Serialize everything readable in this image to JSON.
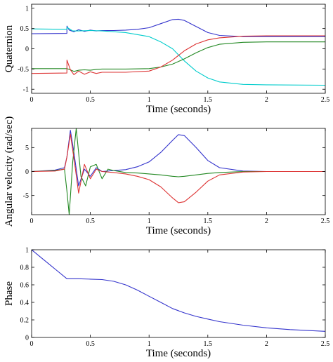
{
  "chart_data": [
    {
      "type": "line",
      "xlabel": "Time (seconds)",
      "ylabel": "Quaternion",
      "xlim": [
        0,
        2.5
      ],
      "ylim": [
        -1.1,
        1.1
      ],
      "xticks": [
        "0",
        "0.5",
        "1",
        "1.5",
        "2",
        "2.5"
      ],
      "yticks": [
        "1",
        "0.5",
        "0",
        "-0.5",
        "-1"
      ],
      "ytick_values": [
        1,
        0.5,
        0,
        -0.5,
        -1
      ],
      "grid": false,
      "series": [
        {
          "color": "#3333cc",
          "x": [
            0,
            0.3,
            0.301,
            0.32,
            0.36,
            0.4,
            0.45,
            0.5,
            0.55,
            0.6,
            0.7,
            0.8,
            0.9,
            1.0,
            1.1,
            1.2,
            1.25,
            1.3,
            1.4,
            1.5,
            1.6,
            1.8,
            2.0,
            2.5
          ],
          "y": [
            0.37,
            0.38,
            0.56,
            0.46,
            0.42,
            0.47,
            0.43,
            0.46,
            0.44,
            0.45,
            0.45,
            0.46,
            0.48,
            0.52,
            0.62,
            0.72,
            0.73,
            0.7,
            0.55,
            0.4,
            0.33,
            0.3,
            0.3,
            0.3
          ]
        },
        {
          "color": "#00cccc",
          "x": [
            0,
            0.3,
            0.301,
            0.35,
            0.4,
            0.5,
            0.6,
            0.8,
            1.0,
            1.1,
            1.2,
            1.3,
            1.4,
            1.5,
            1.6,
            1.8,
            2.0,
            2.5
          ],
          "y": [
            0.49,
            0.48,
            0.53,
            0.44,
            0.44,
            0.45,
            0.44,
            0.4,
            0.3,
            0.17,
            0.0,
            -0.3,
            -0.55,
            -0.72,
            -0.82,
            -0.88,
            -0.89,
            -0.9
          ]
        },
        {
          "color": "#228822",
          "x": [
            0,
            0.3,
            0.32,
            0.36,
            0.4,
            0.45,
            0.5,
            0.55,
            0.6,
            0.8,
            1.0,
            1.1,
            1.2,
            1.3,
            1.4,
            1.5,
            1.6,
            1.8,
            2.0,
            2.5
          ],
          "y": [
            -0.49,
            -0.49,
            -0.51,
            -0.56,
            -0.53,
            -0.52,
            -0.53,
            -0.51,
            -0.5,
            -0.5,
            -0.49,
            -0.45,
            -0.38,
            -0.25,
            -0.1,
            0.03,
            0.11,
            0.16,
            0.17,
            0.17
          ]
        },
        {
          "color": "#dd3333",
          "x": [
            0,
            0.3,
            0.301,
            0.33,
            0.36,
            0.4,
            0.45,
            0.5,
            0.55,
            0.6,
            0.8,
            1.0,
            1.1,
            1.2,
            1.3,
            1.4,
            1.5,
            1.6,
            1.8,
            2.0,
            2.5
          ],
          "y": [
            -0.61,
            -0.6,
            -0.28,
            -0.52,
            -0.64,
            -0.55,
            -0.63,
            -0.57,
            -0.61,
            -0.58,
            -0.58,
            -0.55,
            -0.45,
            -0.28,
            -0.05,
            0.12,
            0.22,
            0.27,
            0.31,
            0.32,
            0.32
          ]
        }
      ]
    },
    {
      "type": "line",
      "xlabel": "Time (seconds)",
      "ylabel": "Angular velocity (rad/sec)",
      "xlim": [
        0,
        2.5
      ],
      "ylim": [
        -9,
        9
      ],
      "xticks": [
        "0",
        "0.5",
        "1",
        "1.5",
        "2",
        "2.5"
      ],
      "yticks": [
        "5",
        "0",
        "-5"
      ],
      "ytick_values": [
        5,
        0,
        -5
      ],
      "grid": false,
      "series": [
        {
          "color": "#3333cc",
          "x": [
            0,
            0.2,
            0.28,
            0.3,
            0.33,
            0.36,
            0.4,
            0.45,
            0.5,
            0.55,
            0.6,
            0.7,
            0.8,
            0.9,
            1.0,
            1.1,
            1.2,
            1.25,
            1.3,
            1.4,
            1.5,
            1.6,
            1.8,
            2.0,
            2.5
          ],
          "y": [
            0,
            0.3,
            0.8,
            3.0,
            8.6,
            4.0,
            -3.0,
            0.5,
            -1.0,
            0.8,
            0.0,
            0.2,
            0.4,
            1.0,
            2.0,
            4.0,
            6.5,
            7.7,
            7.5,
            5.0,
            2.3,
            0.8,
            0.1,
            0.0,
            0.0
          ]
        },
        {
          "color": "#228822",
          "x": [
            0,
            0.2,
            0.28,
            0.3,
            0.32,
            0.35,
            0.38,
            0.42,
            0.46,
            0.5,
            0.55,
            0.6,
            0.65,
            0.7,
            0.8,
            0.9,
            1.0,
            1.1,
            1.2,
            1.25,
            1.3,
            1.4,
            1.5,
            1.6,
            1.8,
            2.0,
            2.5
          ],
          "y": [
            0,
            0.2,
            0.5,
            -4.0,
            -9.0,
            2.0,
            9.0,
            -1.0,
            -3.0,
            1.0,
            1.5,
            -1.5,
            0.5,
            0.2,
            -0.2,
            -0.3,
            -0.5,
            -0.7,
            -1.0,
            -1.1,
            -1.0,
            -0.7,
            -0.4,
            -0.2,
            0.0,
            0.0,
            0.0
          ]
        },
        {
          "color": "#dd3333",
          "x": [
            0,
            0.2,
            0.28,
            0.3,
            0.33,
            0.37,
            0.4,
            0.45,
            0.5,
            0.55,
            0.6,
            0.7,
            0.8,
            0.9,
            1.0,
            1.1,
            1.2,
            1.25,
            1.3,
            1.4,
            1.5,
            1.6,
            1.8,
            2.0,
            2.5
          ],
          "y": [
            0,
            0.1,
            0.5,
            3.0,
            7.8,
            1.0,
            -4.5,
            1.5,
            -1.5,
            0.5,
            0.0,
            -0.2,
            -0.5,
            -1.0,
            -1.7,
            -3.2,
            -5.5,
            -6.5,
            -6.3,
            -4.3,
            -2.0,
            -0.7,
            -0.1,
            0.0,
            0.0
          ]
        }
      ]
    },
    {
      "type": "line",
      "xlabel": "Time (seconds)",
      "ylabel": "Phase",
      "xlim": [
        0,
        2.5
      ],
      "ylim": [
        0,
        1
      ],
      "xticks": [
        "0",
        "0.5",
        "1",
        "1.5",
        "2",
        "2.5"
      ],
      "yticks": [
        "1",
        "0.8",
        "0.6",
        "0.4",
        "0.2",
        "0"
      ],
      "ytick_values": [
        1,
        0.8,
        0.6,
        0.4,
        0.2,
        0
      ],
      "grid": false,
      "series": [
        {
          "color": "#3333cc",
          "x": [
            0,
            0.1,
            0.2,
            0.3,
            0.4,
            0.5,
            0.6,
            0.7,
            0.8,
            0.9,
            1.0,
            1.1,
            1.2,
            1.3,
            1.4,
            1.5,
            1.6,
            1.8,
            2.0,
            2.2,
            2.5
          ],
          "y": [
            1.0,
            0.89,
            0.78,
            0.67,
            0.67,
            0.665,
            0.66,
            0.64,
            0.6,
            0.54,
            0.47,
            0.4,
            0.33,
            0.28,
            0.24,
            0.21,
            0.18,
            0.14,
            0.11,
            0.09,
            0.07
          ]
        }
      ]
    }
  ]
}
